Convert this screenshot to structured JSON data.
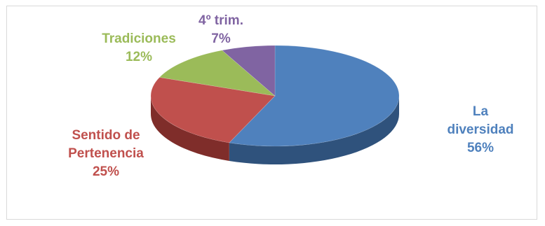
{
  "chart_data": {
    "type": "pie",
    "title": "",
    "three_d": true,
    "legend": "none",
    "slices": [
      {
        "label_lines": [
          "La",
          "diversidad"
        ],
        "percent_label": "56%",
        "value": 56,
        "color": "#4f81bd",
        "side_color": "#2f527c"
      },
      {
        "label_lines": [
          "Sentido de",
          "Pertenencia"
        ],
        "percent_label": "25%",
        "value": 25,
        "color": "#c0504d",
        "side_color": "#7f2d2a"
      },
      {
        "label_lines": [
          "Tradiciones"
        ],
        "percent_label": "12%",
        "value": 12,
        "color": "#9bbb59",
        "side_color": "#6a8238"
      },
      {
        "label_lines": [
          "4º trim."
        ],
        "percent_label": "7%",
        "value": 7,
        "color": "#8064a2",
        "side_color": "#54416b"
      }
    ]
  }
}
